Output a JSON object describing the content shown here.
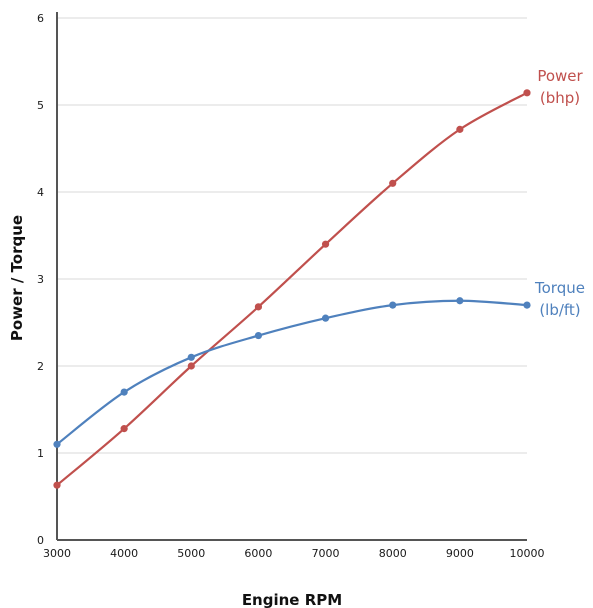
{
  "chart_data": {
    "type": "line",
    "title": "",
    "xlabel": "Engine RPM",
    "ylabel": "Power / Torque",
    "xlim": [
      3000,
      10000
    ],
    "ylim": [
      0,
      6
    ],
    "x_ticks": [
      "3000",
      "4000",
      "5000",
      "6000",
      "7000",
      "8000",
      "9000",
      "10000"
    ],
    "y_ticks": [
      "0",
      "1",
      "2",
      "3",
      "4",
      "5",
      "6"
    ],
    "grid": "horizontal",
    "legend": "inline labels at right end of each line",
    "x": [
      3000,
      4000,
      5000,
      6000,
      7000,
      8000,
      9000,
      10000
    ],
    "series": [
      {
        "name": "Power (bhp)",
        "label_lines": [
          "Power",
          "(bhp)"
        ],
        "color": "#c0504d",
        "values": [
          0.63,
          1.28,
          2.0,
          2.68,
          3.4,
          4.1,
          4.72,
          5.14
        ]
      },
      {
        "name": "Torque (lb/ft)",
        "label_lines": [
          "Torque",
          "(lb/ft)"
        ],
        "color": "#4f81bd",
        "values": [
          1.1,
          1.7,
          2.1,
          2.35,
          2.55,
          2.7,
          2.75,
          2.7
        ]
      }
    ],
    "grid_color": "#d9d9d9",
    "axis_color": "#555555"
  }
}
